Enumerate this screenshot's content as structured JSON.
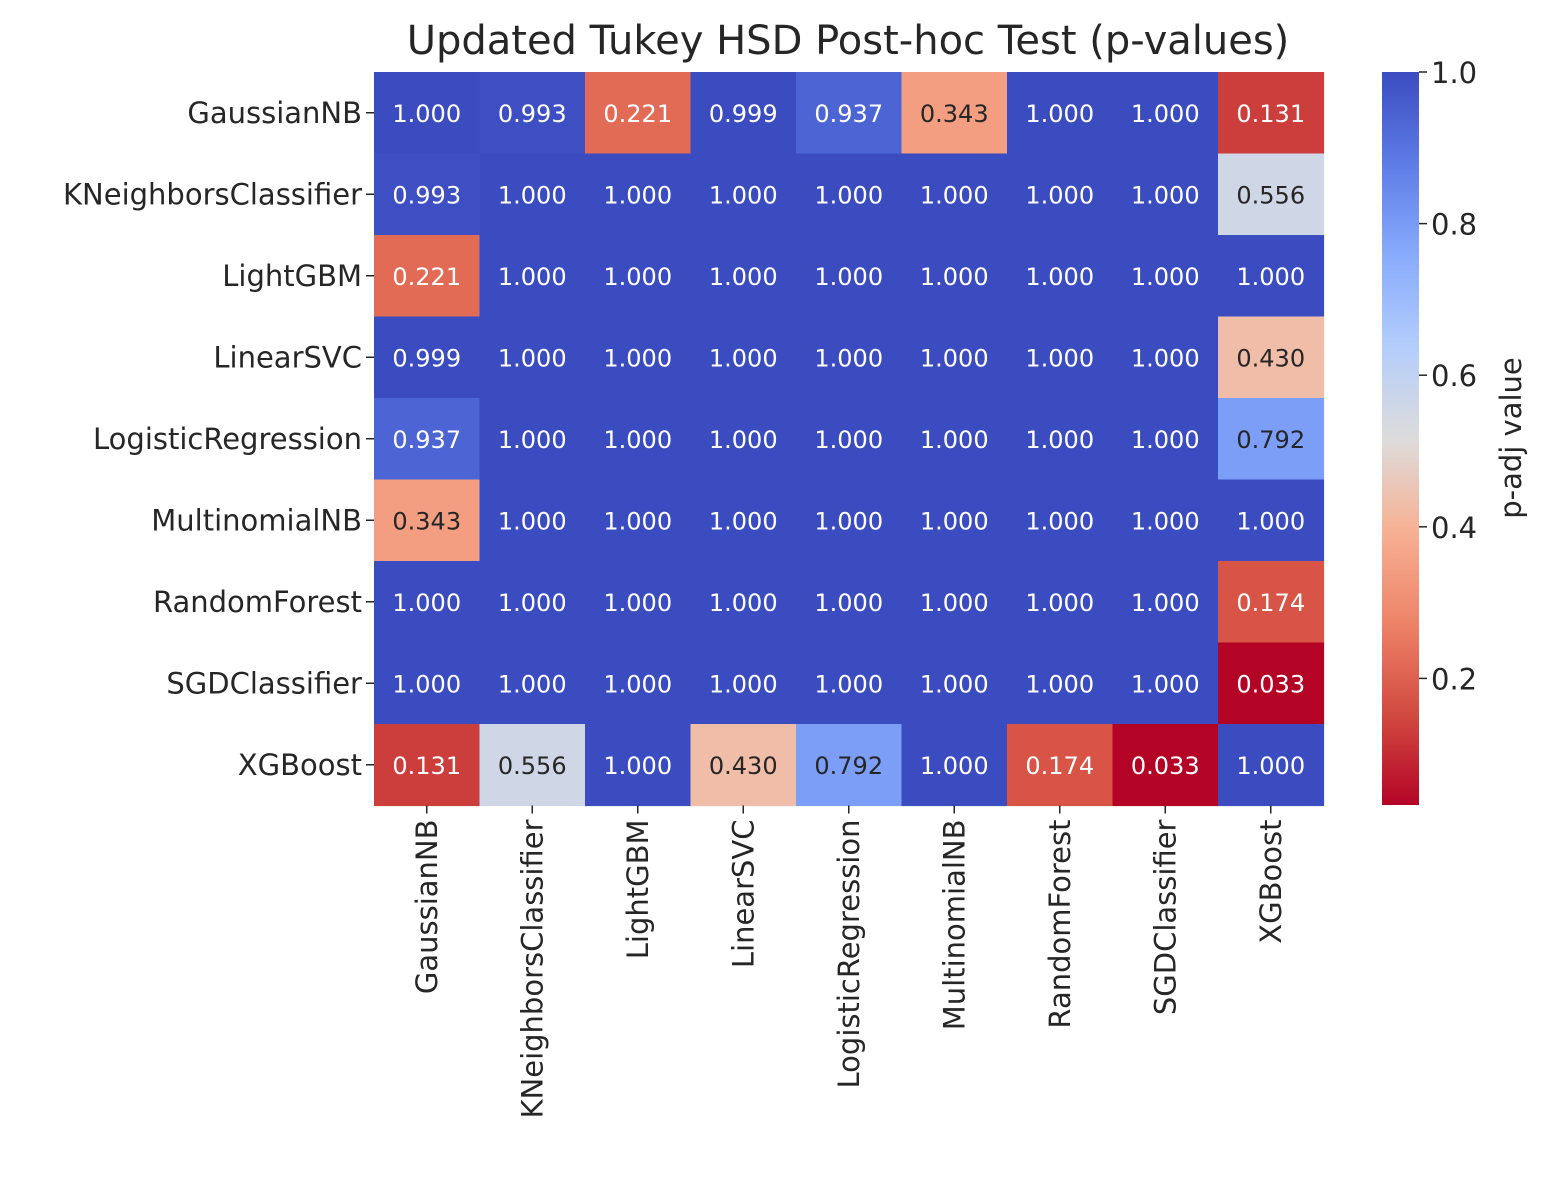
{
  "chart_data": {
    "type": "heatmap",
    "title": "Updated Tukey HSD Post-hoc Test (p-values)",
    "x_categories": [
      "GaussianNB",
      "KNeighborsClassifier",
      "LightGBM",
      "LinearSVC",
      "LogisticRegression",
      "MultinomialNB",
      "RandomForest",
      "SGDClassifier",
      "XGBoost"
    ],
    "y_categories": [
      "GaussianNB",
      "KNeighborsClassifier",
      "LightGBM",
      "LinearSVC",
      "LogisticRegression",
      "MultinomialNB",
      "RandomForest",
      "SGDClassifier",
      "XGBoost"
    ],
    "values": [
      [
        1.0,
        0.993,
        0.221,
        0.999,
        0.937,
        0.343,
        1.0,
        1.0,
        0.131
      ],
      [
        0.993,
        1.0,
        1.0,
        1.0,
        1.0,
        1.0,
        1.0,
        1.0,
        0.556
      ],
      [
        0.221,
        1.0,
        1.0,
        1.0,
        1.0,
        1.0,
        1.0,
        1.0,
        1.0
      ],
      [
        0.999,
        1.0,
        1.0,
        1.0,
        1.0,
        1.0,
        1.0,
        1.0,
        0.43
      ],
      [
        0.937,
        1.0,
        1.0,
        1.0,
        1.0,
        1.0,
        1.0,
        1.0,
        0.792
      ],
      [
        0.343,
        1.0,
        1.0,
        1.0,
        1.0,
        1.0,
        1.0,
        1.0,
        1.0
      ],
      [
        1.0,
        1.0,
        1.0,
        1.0,
        1.0,
        1.0,
        1.0,
        1.0,
        0.174
      ],
      [
        1.0,
        1.0,
        1.0,
        1.0,
        1.0,
        1.0,
        1.0,
        1.0,
        0.033
      ],
      [
        0.131,
        0.556,
        1.0,
        0.43,
        0.792,
        1.0,
        0.174,
        0.033,
        1.0
      ]
    ],
    "value_format": "3 decimals",
    "colormap": "coolwarm (reversed)",
    "color_range": [
      0.033,
      1.0
    ],
    "colorbar": {
      "label": "p-adj value",
      "ticks": [
        0.2,
        0.4,
        0.6,
        0.8,
        1.0
      ],
      "tick_labels": [
        "0.2",
        "0.4",
        "0.6",
        "0.8",
        "1.0"
      ],
      "placement": "right"
    },
    "xlabel": "",
    "ylabel": "",
    "grid": false
  }
}
